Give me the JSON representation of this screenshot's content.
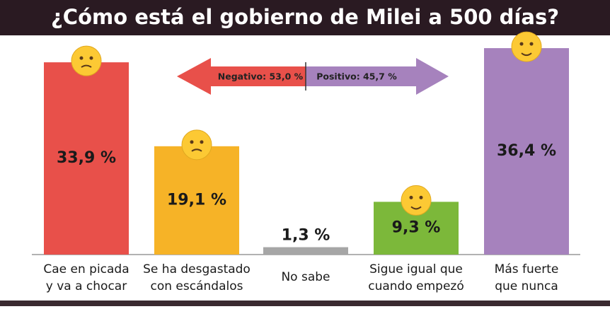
{
  "chart_data": {
    "type": "bar",
    "title": "¿Cómo está el gobierno de Milei a 500 días?",
    "categories": [
      [
        "Cae en picada",
        "y va a chocar"
      ],
      [
        "Se ha desgastado",
        "con escándalos"
      ],
      [
        "No sabe"
      ],
      [
        "Sigue igual que",
        "cuando empezó"
      ],
      [
        "Más fuerte",
        "que nunca"
      ]
    ],
    "values": [
      33.9,
      19.1,
      1.3,
      9.3,
      36.4
    ],
    "value_labels": [
      "33,9 %",
      "19,1 %",
      "1,3 %",
      "9,3 %",
      "36,4 %"
    ],
    "colors": [
      "#e8504a",
      "#f6b327",
      "#a6a6a6",
      "#7cb83a",
      "#a682bd"
    ],
    "annotations": [
      "Negativo: 53,0 %",
      "Positivo: 45,7 %"
    ]
  }
}
